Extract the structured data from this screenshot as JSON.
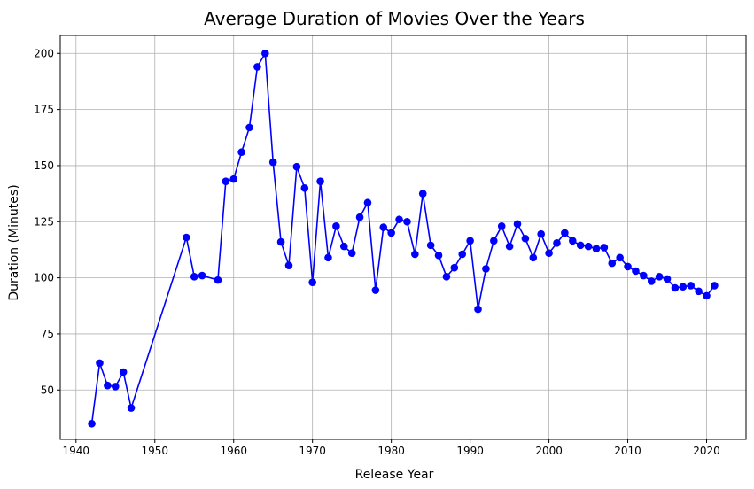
{
  "chart_data": {
    "type": "line",
    "title": "Average Duration of Movies Over the Years",
    "xlabel": "Release Year",
    "ylabel": "Duration (Minutes)",
    "xlim": [
      1938,
      2025
    ],
    "ylim": [
      28,
      208
    ],
    "xticks": [
      1940,
      1950,
      1960,
      1970,
      1980,
      1990,
      2000,
      2010,
      2020
    ],
    "yticks": [
      50,
      75,
      100,
      125,
      150,
      175,
      200
    ],
    "grid": true,
    "marker": "circle",
    "color": "#0000ff",
    "series": [
      {
        "x": [
          1942,
          1943,
          1944,
          1945,
          1946,
          1947,
          1954,
          1955,
          1956,
          1958,
          1959,
          1960,
          1961,
          1962,
          1963,
          1964,
          1965,
          1966,
          1967,
          1968,
          1969,
          1970,
          1971,
          1972,
          1973,
          1974,
          1975,
          1976,
          1977,
          1978,
          1979,
          1980,
          1981,
          1982,
          1983,
          1984,
          1985,
          1986,
          1987,
          1988,
          1989,
          1990,
          1991,
          1992,
          1993,
          1994,
          1995,
          1996,
          1997,
          1998,
          1999,
          2000,
          2001,
          2002,
          2003,
          2004,
          2005,
          2006,
          2007,
          2008,
          2009,
          2010,
          2011,
          2012,
          2013,
          2014,
          2015,
          2016,
          2017,
          2018,
          2019,
          2020,
          2021
        ],
        "y": [
          35,
          62,
          52,
          51.5,
          58,
          42,
          118,
          100.5,
          101,
          99,
          143,
          144,
          156,
          167,
          194,
          200,
          151.5,
          116,
          105.5,
          149.5,
          140,
          98,
          143,
          109,
          123,
          114,
          111,
          127,
          133.5,
          94.5,
          122.5,
          120,
          126,
          125,
          110.5,
          137.5,
          114.5,
          110,
          100.5,
          104.5,
          110.5,
          116.5,
          86,
          104,
          116.5,
          123,
          114,
          124,
          117.5,
          109,
          119.5,
          111,
          115.5,
          120,
          116.5,
          114.5,
          114,
          113,
          113.5,
          106.5,
          109,
          105,
          103,
          101,
          98.5,
          100.5,
          99.5,
          95.5,
          96,
          96.5,
          94,
          92,
          96.5
        ]
      }
    ]
  }
}
